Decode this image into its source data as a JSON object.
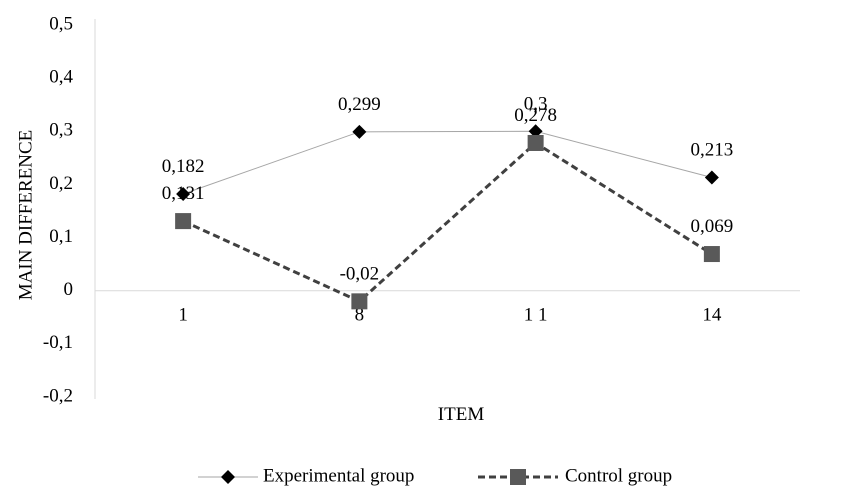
{
  "chart_data": {
    "type": "line",
    "xlabel": "ITEM",
    "ylabel": "MAIN DIFFERENCE",
    "categories": [
      "1",
      "8",
      "1 1",
      "14"
    ],
    "ylim": [
      -0.2,
      0.5
    ],
    "yticks": [
      -0.2,
      -0.1,
      0,
      0.1,
      0.2,
      0.3,
      0.4,
      0.5
    ],
    "ytick_labels": [
      "-0,2",
      "-0,1",
      "0",
      "0,1",
      "0,2",
      "0,3",
      "0,4",
      "0,5"
    ],
    "grid": false,
    "legend_position": "bottom",
    "series": [
      {
        "name": "Experimental group",
        "values": [
          0.182,
          0.299,
          0.3,
          0.213
        ],
        "labels": [
          "0,182",
          "0,299",
          "0,3",
          "0,213"
        ],
        "color": "#a6a6a6",
        "marker_color": "#000000",
        "marker": "diamond",
        "line_style": "solid"
      },
      {
        "name": "Control group",
        "values": [
          0.131,
          -0.02,
          0.278,
          0.069
        ],
        "labels": [
          "0,131",
          "-0,02",
          "0,278",
          "0,069"
        ],
        "color": "#404040",
        "marker_color": "#595959",
        "marker": "square",
        "line_style": "dashed"
      }
    ]
  }
}
